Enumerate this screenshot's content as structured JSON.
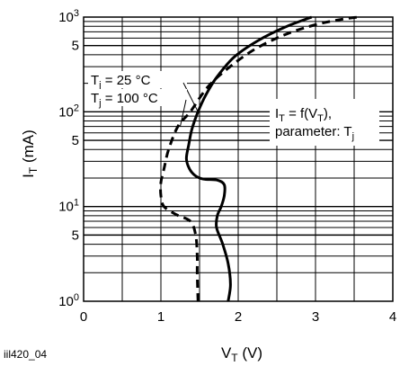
{
  "figure_id": "iil420_04",
  "chart_data": {
    "type": "line",
    "xlabel": {
      "main": "V",
      "sub": "T",
      "unit": " (V)"
    },
    "ylabel": {
      "main": "I",
      "sub": "T",
      "unit": " (mA)"
    },
    "xlim": [
      0,
      4
    ],
    "ylim": [
      1,
      1000
    ],
    "y_scale": "log",
    "grid": true,
    "x_ticks": [
      "0",
      "1",
      "2",
      "3",
      "4"
    ],
    "y_ticks": [
      {
        "value": 1,
        "base": "10",
        "exp": "0"
      },
      {
        "value": 5,
        "label": "5"
      },
      {
        "value": 10,
        "base": "10",
        "exp": "1"
      },
      {
        "value": 50,
        "label": "5"
      },
      {
        "value": 100,
        "base": "10",
        "exp": "2"
      },
      {
        "value": 500,
        "label": "5"
      },
      {
        "value": 1000,
        "base": "10",
        "exp": "3"
      }
    ],
    "annotation": {
      "line1": {
        "a": "I",
        "a_sub": "T",
        "b": " = f(V",
        "b_sub": "T",
        "c": "),"
      },
      "line2": {
        "a": "parameter: T",
        "a_sub": "j"
      }
    },
    "series": [
      {
        "label": {
          "main": "T",
          "sub": "j",
          "rest": " = 25 °C"
        },
        "style": "solid",
        "points": [
          [
            1.87,
            1
          ],
          [
            1.9,
            1.5
          ],
          [
            1.87,
            2.5
          ],
          [
            1.8,
            4
          ],
          [
            1.72,
            6
          ],
          [
            1.73,
            8
          ],
          [
            1.78,
            10
          ],
          [
            1.82,
            13
          ],
          [
            1.82,
            17
          ],
          [
            1.73,
            19
          ],
          [
            1.55,
            19.5
          ],
          [
            1.45,
            21
          ],
          [
            1.37,
            25
          ],
          [
            1.33,
            32
          ],
          [
            1.36,
            45
          ],
          [
            1.4,
            65
          ],
          [
            1.48,
            100
          ],
          [
            1.58,
            150
          ],
          [
            1.72,
            230
          ],
          [
            1.95,
            380
          ],
          [
            2.25,
            560
          ],
          [
            2.6,
            780
          ],
          [
            2.95,
            1000
          ]
        ]
      },
      {
        "label": {
          "main": "T",
          "sub": "j",
          "rest": " = 100 °C"
        },
        "style": "dashed",
        "points": [
          [
            1.48,
            1
          ],
          [
            1.47,
            2
          ],
          [
            1.47,
            3
          ],
          [
            1.45,
            5
          ],
          [
            1.38,
            7
          ],
          [
            1.2,
            8.2
          ],
          [
            1.04,
            10
          ],
          [
            1.0,
            13
          ],
          [
            1.0,
            18
          ],
          [
            1.04,
            25
          ],
          [
            1.1,
            40
          ],
          [
            1.22,
            70
          ],
          [
            1.38,
            100
          ],
          [
            1.6,
            180
          ],
          [
            1.85,
            280
          ],
          [
            2.2,
            450
          ],
          [
            2.6,
            650
          ],
          [
            3.0,
            830
          ],
          [
            3.35,
            950
          ],
          [
            3.55,
            1000
          ]
        ]
      }
    ]
  }
}
